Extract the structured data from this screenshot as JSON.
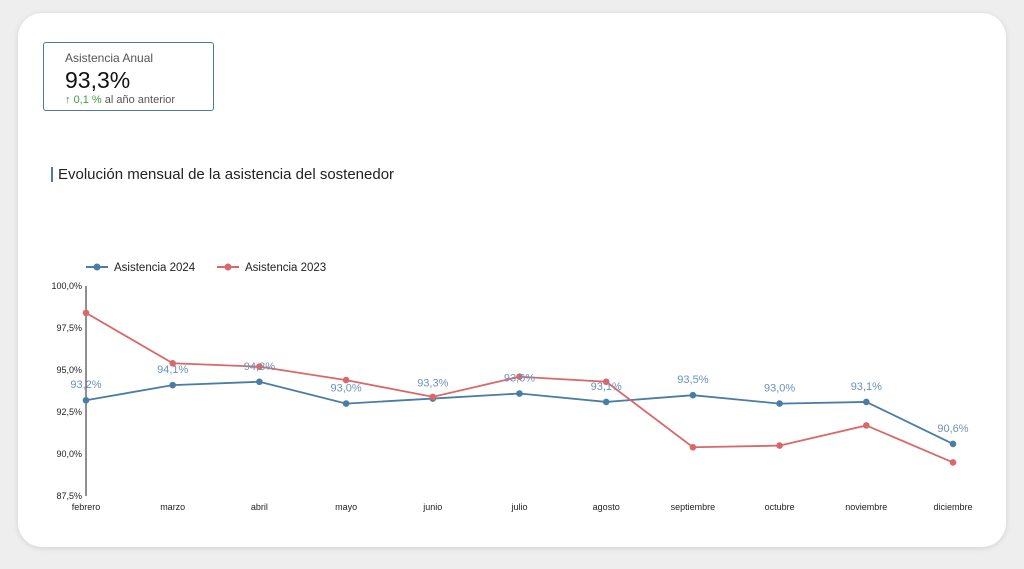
{
  "kpi": {
    "label": "Asistencia Anual",
    "value": "93,3%",
    "arrow": "↑",
    "delta": "0,1 %",
    "delta_suffix": "al año anterior"
  },
  "section_title": "Evolución mensual de la asistencia del sostenedor",
  "chart_data": {
    "type": "line",
    "categories": [
      "febrero",
      "marzo",
      "abril",
      "mayo",
      "junio",
      "julio",
      "agosto",
      "septiembre",
      "octubre",
      "noviembre",
      "diciembre"
    ],
    "series": [
      {
        "name": "Asistencia 2024",
        "color": "#4a7da3",
        "values": [
          93.2,
          94.1,
          94.3,
          93.0,
          93.3,
          93.6,
          93.1,
          93.5,
          93.0,
          93.1,
          90.6
        ],
        "labels": [
          "93,2%",
          "94,1%",
          "94,3%",
          "93,0%",
          "93,3%",
          "93,6%",
          "93,1%",
          "93,5%",
          "93,0%",
          "93,1%",
          "90,6%"
        ]
      },
      {
        "name": "Asistencia 2023",
        "color": "#d9686a",
        "values": [
          98.4,
          95.4,
          95.2,
          94.4,
          93.4,
          94.6,
          94.3,
          90.4,
          90.5,
          91.7,
          89.5
        ]
      }
    ],
    "ylim": [
      87.5,
      100
    ],
    "yticks": [
      100,
      97.5,
      95,
      92.5,
      90,
      87.5
    ],
    "ytick_labels": [
      "100,0%",
      "97,5%",
      "95,0%",
      "92,5%",
      "90,0%",
      "87,5%"
    ],
    "legend_position": "top-left",
    "grid": false
  }
}
